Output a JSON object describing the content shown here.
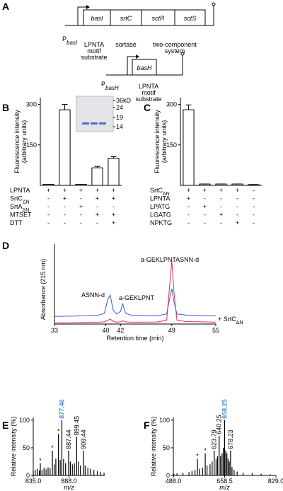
{
  "diagram": {
    "label": "A",
    "operon1": {
      "promoter": {
        "text": "P",
        "sub": "basI"
      },
      "genes": [
        "basI",
        "srtC",
        "sctR",
        "sctS"
      ],
      "notes": [
        [
          "LPNTA",
          "motif",
          "substrate"
        ],
        [
          "sortase"
        ],
        [
          "two-component",
          "system"
        ]
      ]
    },
    "operon2": {
      "promoter": {
        "text": "P",
        "sub": "basH"
      },
      "genes": [
        "basH"
      ],
      "notes": [
        [
          "LPNTA",
          "motif",
          "substrate"
        ]
      ]
    }
  },
  "chart_data": [
    {
      "type": "bar",
      "label": "B",
      "ylabel": [
        "Fluorescence intensity",
        "(arbitrary units)"
      ],
      "values": [
        4,
        280,
        4,
        65,
        100
      ],
      "errors": [
        0,
        20,
        0,
        5,
        6
      ],
      "color": "#ffffff",
      "ylim": [
        0,
        325
      ],
      "yticks": [
        150,
        300
      ],
      "row_labels": [
        {
          "name": "LPNTA"
        },
        {
          "name": "SrtC",
          "sub": "ΔN"
        },
        {
          "name": "SrtA",
          "sub": "ΔN"
        },
        {
          "name": "MTSET"
        },
        {
          "name": "DTT"
        }
      ],
      "rows": [
        [
          "+",
          "+",
          "+",
          "+",
          "+"
        ],
        [
          "-",
          "+",
          "-",
          "+",
          "+"
        ],
        [
          "-",
          "-",
          "+",
          "-",
          "-"
        ],
        [
          "-",
          "-",
          "-",
          "+",
          "+"
        ],
        [
          "-",
          "-",
          "-",
          "-",
          "+"
        ]
      ],
      "inset": {
        "labels": [
          "36kD",
          "24",
          "19",
          "14"
        ],
        "band_color": "#4a6fd0"
      }
    },
    {
      "type": "bar",
      "label": "C",
      "ylabel": [
        "Fluorescence intensity",
        "(arbitrary units)"
      ],
      "values": [
        280,
        5,
        5,
        5,
        3
      ],
      "errors": [
        18,
        0,
        0,
        0,
        0
      ],
      "color": "#ffffff",
      "ylim": [
        0,
        325
      ],
      "yticks": [
        150,
        300
      ],
      "row_labels": [
        {
          "name": "SrtC",
          "sub": "ΔN"
        },
        {
          "name": "LPNTA"
        },
        {
          "name": "LPATG"
        },
        {
          "name": "LGATG"
        },
        {
          "name": "NPKTG"
        }
      ],
      "rows": [
        [
          "+",
          "+",
          "+",
          "+",
          "-"
        ],
        [
          "+",
          "-",
          "-",
          "-",
          "-"
        ],
        [
          "-",
          "+",
          "-",
          "-",
          "-"
        ],
        [
          "-",
          "-",
          "+",
          "-",
          "-"
        ],
        [
          "-",
          "-",
          "-",
          "+",
          "-"
        ]
      ]
    },
    {
      "type": "line",
      "label": "D",
      "ylabel": "Absorbance (215 nm)",
      "xlabel": "Retention time (min)",
      "x": [
        33,
        35,
        37,
        38,
        39,
        39.8,
        40.3,
        40.6,
        41,
        41.5,
        42,
        42.3,
        42.7,
        43.5,
        45,
        47,
        48.3,
        48.7,
        49,
        49.3,
        49.7,
        51,
        53,
        55
      ],
      "series": [
        {
          "color": "#3a5fd0",
          "values": [
            12,
            12.5,
            13,
            13.5,
            14,
            17,
            40,
            46,
            22,
            16,
            20,
            32,
            17,
            14,
            13.5,
            13,
            16,
            40,
            56,
            35,
            16,
            14,
            13.5,
            13
          ]
        },
        {
          "color": "#e0304a",
          "values": [
            2,
            2,
            2.5,
            3,
            3,
            3.5,
            6,
            8,
            4,
            3,
            3.5,
            5,
            3.5,
            3,
            3,
            3.2,
            6,
            60,
            100,
            50,
            6,
            4,
            3.5,
            3
          ]
        }
      ],
      "xlim": [
        33,
        55
      ],
      "xticks": [
        33,
        40,
        42,
        49,
        55
      ],
      "ylim": [
        0,
        110
      ],
      "annotations": [
        {
          "text": "a-GEKLPNTASNN-d"
        },
        {
          "text": "ASNN-d"
        },
        {
          "text": "a-GEKLPNT"
        },
        {
          "text": "+ SrtC",
          "sub": "ΔN"
        }
      ]
    },
    {
      "type": "stem",
      "label": "E",
      "ylabel": "Relative intensity (%)",
      "xlabel": "m/z",
      "color": "#000000",
      "x": [
        835,
        838,
        841,
        844,
        845.5,
        848,
        851,
        854,
        857,
        860,
        863.4,
        866,
        868.5,
        872.4,
        875,
        877.46,
        880,
        883,
        887.44,
        890,
        893,
        896,
        899.45,
        902,
        905,
        909.44,
        912,
        916,
        920,
        925,
        930,
        935,
        940
      ],
      "values": [
        8,
        10,
        12,
        9,
        22,
        10,
        14,
        11,
        15,
        13,
        45,
        20,
        30,
        75,
        28,
        100,
        30,
        22,
        45,
        25,
        20,
        22,
        70,
        25,
        18,
        45,
        18,
        14,
        12,
        10,
        8,
        6,
        5
      ],
      "xlim": [
        835,
        941
      ],
      "xticks": [
        {
          "value": 835,
          "label": "835.0"
        },
        {
          "value": 888,
          "label": "888.0"
        }
      ],
      "ylim": [
        0,
        105
      ],
      "yticks": [
        0,
        50,
        100
      ],
      "peak_labels": [
        877.46,
        887.44,
        899.45,
        909.44
      ],
      "highlight": 0,
      "highlight_color": "#4a90d9",
      "annotations": [
        {
          "text": "*",
          "x": 845.5
        },
        {
          "text": "*",
          "x": 863.4
        },
        {
          "text": "*",
          "x": 872.4
        }
      ]
    },
    {
      "type": "stem",
      "label": "F",
      "ylabel": "Relative intensity (%)",
      "xlabel": "m/z",
      "color": "#000000",
      "x": [
        490,
        500,
        520,
        540,
        550,
        560,
        568,
        575,
        585,
        594,
        600,
        610,
        617,
        623.79,
        630,
        635,
        640.25,
        645,
        650,
        654,
        658.25,
        662,
        666,
        670,
        674,
        678.23,
        683,
        690,
        700,
        720,
        750,
        780,
        810
      ],
      "values": [
        3,
        4,
        5,
        6,
        8,
        10,
        30,
        12,
        14,
        40,
        18,
        20,
        25,
        45,
        30,
        35,
        72,
        35,
        40,
        50,
        100,
        45,
        40,
        30,
        25,
        45,
        15,
        10,
        7,
        5,
        4,
        3,
        2
      ],
      "xlim": [
        488,
        829
      ],
      "xticks": [
        {
          "value": 488,
          "label": "488.0"
        },
        {
          "value": 658.5,
          "label": "658.5"
        },
        {
          "value": 829,
          "label": "829.0"
        }
      ],
      "ylim": [
        0,
        105
      ],
      "yticks": [
        0,
        50,
        100
      ],
      "peak_labels": [
        658.25,
        640.25,
        623.79,
        678.23
      ],
      "highlight": 0,
      "highlight_color": "#4a90d9",
      "annotations": [
        {
          "text": "*",
          "x": 568
        },
        {
          "text": "*",
          "x": 594
        }
      ]
    }
  ]
}
